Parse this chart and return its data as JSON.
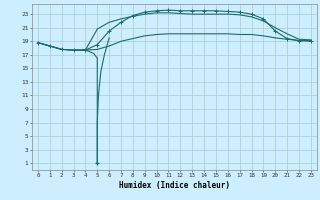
{
  "xlabel": "Humidex (Indice chaleur)",
  "bg_color": "#cceeff",
  "grid_color": "#aacccc",
  "line_color": "#1a6b6b",
  "xlim": [
    -0.5,
    23.5
  ],
  "ylim": [
    0,
    24.5
  ],
  "xticks": [
    0,
    1,
    2,
    3,
    4,
    5,
    6,
    7,
    8,
    9,
    10,
    11,
    12,
    13,
    14,
    15,
    16,
    17,
    18,
    19,
    20,
    21,
    22,
    23
  ],
  "yticks": [
    1,
    3,
    5,
    7,
    9,
    11,
    13,
    15,
    17,
    19,
    21,
    23
  ],
  "curve1_x": [
    0,
    1,
    2,
    3,
    4,
    5,
    6,
    7,
    8,
    9,
    10,
    11,
    12,
    13,
    14,
    15,
    16,
    17,
    18,
    19,
    20,
    21,
    22,
    23
  ],
  "curve1_y": [
    18.8,
    18.3,
    17.8,
    17.7,
    17.7,
    18.5,
    20.5,
    21.8,
    22.8,
    23.3,
    23.5,
    23.6,
    23.5,
    23.5,
    23.5,
    23.5,
    23.4,
    23.3,
    23.0,
    22.3,
    20.5,
    19.4,
    19.1,
    19.1
  ],
  "curve2_x": [
    0,
    1,
    2,
    3,
    4,
    5,
    6,
    7,
    8,
    9,
    10,
    11,
    12,
    13,
    14,
    15,
    16,
    17,
    18,
    19,
    20,
    21,
    22,
    23
  ],
  "curve2_y": [
    18.8,
    18.3,
    17.8,
    17.7,
    17.7,
    20.8,
    21.8,
    22.3,
    22.7,
    23.0,
    23.2,
    23.2,
    23.1,
    23.0,
    23.0,
    23.0,
    23.0,
    22.9,
    22.6,
    22.0,
    21.0,
    20.1,
    19.3,
    19.2
  ],
  "curve3_x": [
    0,
    1,
    2,
    3,
    4,
    5,
    6,
    7,
    8,
    9,
    10,
    11,
    12,
    13,
    14,
    15,
    16,
    17,
    18,
    19,
    20,
    21,
    22,
    23
  ],
  "curve3_y": [
    18.8,
    18.3,
    17.8,
    17.7,
    17.7,
    17.8,
    18.3,
    19.0,
    19.4,
    19.8,
    20.0,
    20.1,
    20.1,
    20.1,
    20.1,
    20.1,
    20.1,
    20.0,
    20.0,
    19.8,
    19.5,
    19.3,
    19.1,
    19.0
  ],
  "spike_x": [
    3.8,
    4.0,
    4.3,
    4.7,
    5.0,
    5.0,
    5.0,
    5.0,
    5.0,
    5.0,
    5.0
  ],
  "spike_y": [
    17.8,
    17.7,
    17.5,
    17.2,
    16.5,
    13.0,
    8.0,
    4.0,
    2.0,
    1.2,
    1.0
  ],
  "spike_up_x": [
    5.0,
    5.0,
    5.0,
    5.0,
    5.1,
    5.3,
    5.6,
    6.0
  ],
  "spike_up_y": [
    1.0,
    1.5,
    3.0,
    7.0,
    11.0,
    14.5,
    17.0,
    19.5
  ]
}
